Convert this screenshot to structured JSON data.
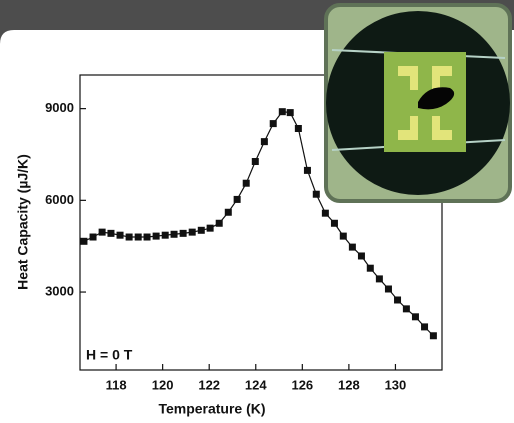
{
  "chart_data": {
    "type": "line",
    "x_label": "Temperature (K)",
    "y_label": "Heat Capacity (µJ/K)",
    "annotation": "H = 0 T",
    "color": "#111111",
    "x": [
      116.62,
      117.01,
      117.4,
      117.78,
      118.17,
      118.56,
      118.95,
      119.33,
      119.72,
      120.11,
      120.49,
      120.88,
      121.27,
      121.66,
      122.04,
      122.43,
      122.82,
      123.2,
      123.59,
      123.98,
      124.37,
      124.75,
      125.14,
      125.48,
      125.83,
      126.22,
      126.6,
      126.99,
      127.38,
      127.76,
      128.15,
      128.54,
      128.92,
      129.31,
      129.7,
      130.09,
      130.47,
      130.86,
      131.25,
      131.63
    ],
    "values": [
      4660,
      4800,
      4960,
      4920,
      4860,
      4800,
      4800,
      4800,
      4830,
      4860,
      4890,
      4920,
      4960,
      5020,
      5090,
      5250,
      5610,
      6030,
      6560,
      7270,
      7920,
      8510,
      8900,
      8870,
      8350,
      6980,
      6200,
      5580,
      5250,
      4830,
      4470,
      4180,
      3780,
      3430,
      3100,
      2740,
      2450,
      2190,
      1860,
      1570
    ],
    "xlim": [
      116.45,
      132.0
    ],
    "ylim": [
      450,
      10100
    ],
    "xticks": [
      118,
      120,
      122,
      124,
      126,
      128,
      130
    ],
    "yticks": [
      3000,
      6000,
      9000
    ]
  }
}
